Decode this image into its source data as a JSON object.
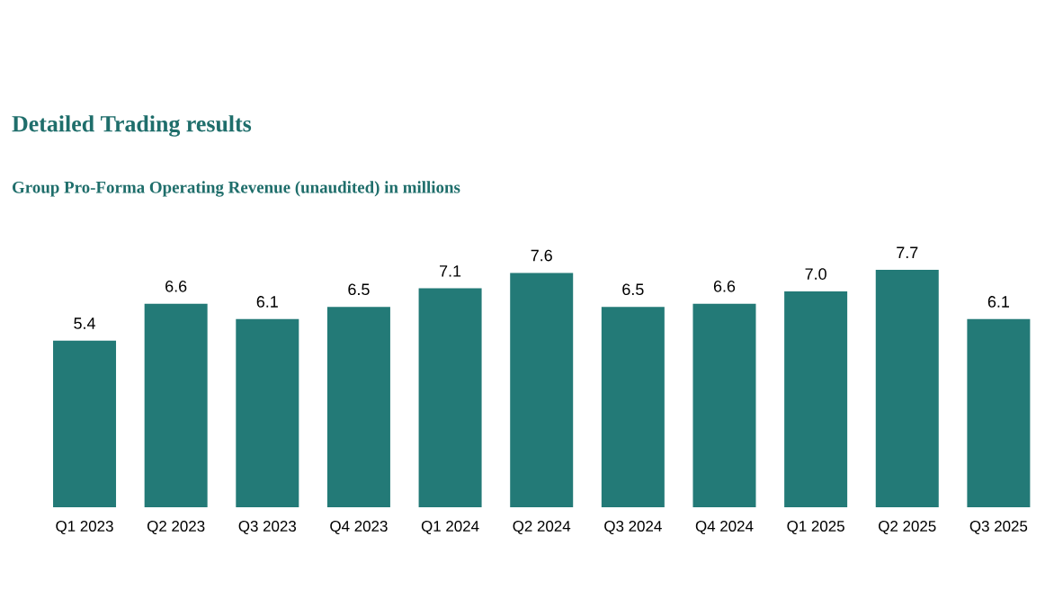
{
  "chart_data": {
    "type": "bar",
    "title": "Detailed Trading results",
    "subtitle": "Group Pro-Forma Operating Revenue (unaudited) in millions",
    "categories": [
      "Q1 2023",
      "Q2 2023",
      "Q3 2023",
      "Q4 2023",
      "Q1 2024",
      "Q2 2024",
      "Q3 2024",
      "Q4 2024",
      "Q1 2025",
      "Q2 2025",
      "Q3 2025"
    ],
    "values": [
      5.4,
      6.6,
      6.1,
      6.5,
      7.1,
      7.6,
      6.5,
      6.6,
      7.0,
      7.7,
      6.1
    ],
    "value_labels": [
      "5.4",
      "6.6",
      "6.1",
      "6.5",
      "7.1",
      "7.6",
      "6.5",
      "6.6",
      "7.0",
      "7.7",
      "6.1"
    ],
    "color": "#237a77"
  }
}
